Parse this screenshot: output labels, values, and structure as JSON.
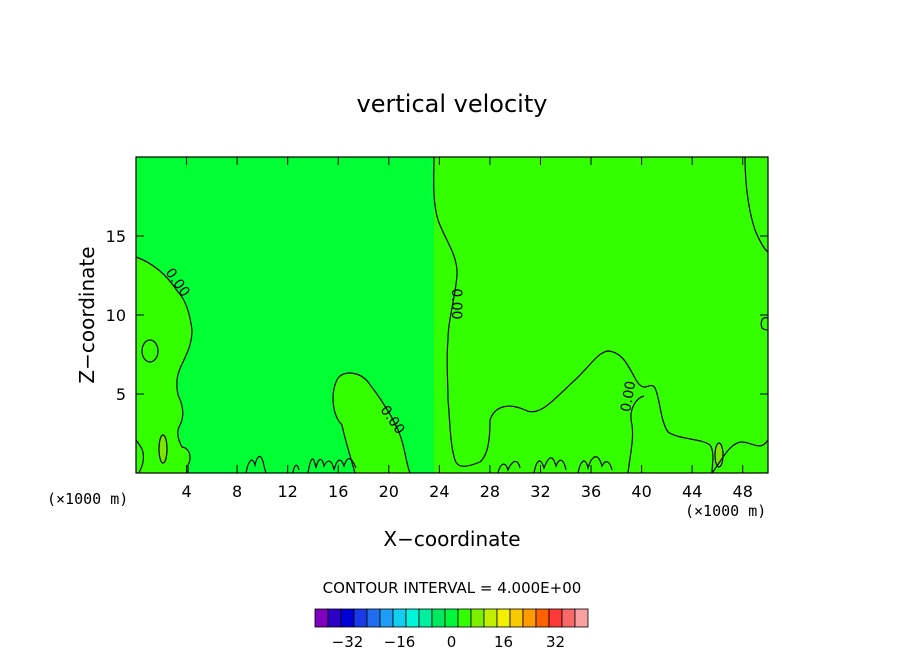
{
  "chart_data": {
    "type": "contour",
    "title": "vertical velocity",
    "xlabel": "X−coordinate",
    "ylabel": "Z−coordinate",
    "x_unit_label": "(×1000 m)",
    "y_unit_label": "(×1000 m)",
    "xlim": [
      0,
      50
    ],
    "ylim": [
      0,
      20
    ],
    "x_ticks": [
      4,
      8,
      12,
      16,
      20,
      24,
      28,
      32,
      36,
      40,
      44,
      48
    ],
    "y_ticks": [
      5,
      10,
      15
    ],
    "contour_interval_text": "CONTOUR INTERVAL = 4.000E+00",
    "contour_labels": [
      {
        "text": "0.00",
        "x": 3,
        "y": 11.9
      },
      {
        "text": "0.00",
        "x": 25.0,
        "y": 10.7
      },
      {
        "text": "0.00",
        "x": 20.0,
        "y": 3.2
      },
      {
        "text": "0.00",
        "x": 39.3,
        "y": 4.8
      }
    ],
    "colorbar": {
      "colors": [
        "#8000c0",
        "#2d00c8",
        "#0000d8",
        "#1a3ae8",
        "#1f6ef0",
        "#1f9cf6",
        "#14cef2",
        "#00f4d8",
        "#00f0a0",
        "#00e860",
        "#00f83a",
        "#32ff00",
        "#7cf000",
        "#c0f000",
        "#f0f000",
        "#f8c800",
        "#ff9a00",
        "#ff6000",
        "#ff3838",
        "#f86868",
        "#f8a0a0"
      ],
      "tick_labels": [
        "−32",
        "−16",
        "0",
        "16",
        "32"
      ],
      "tick_values": [
        -32,
        -16,
        0,
        16,
        32
      ]
    },
    "regions": {
      "background_color": "#00ff33",
      "positive_color": "#33ff00",
      "strong_positive_color": "#7ce600"
    }
  }
}
